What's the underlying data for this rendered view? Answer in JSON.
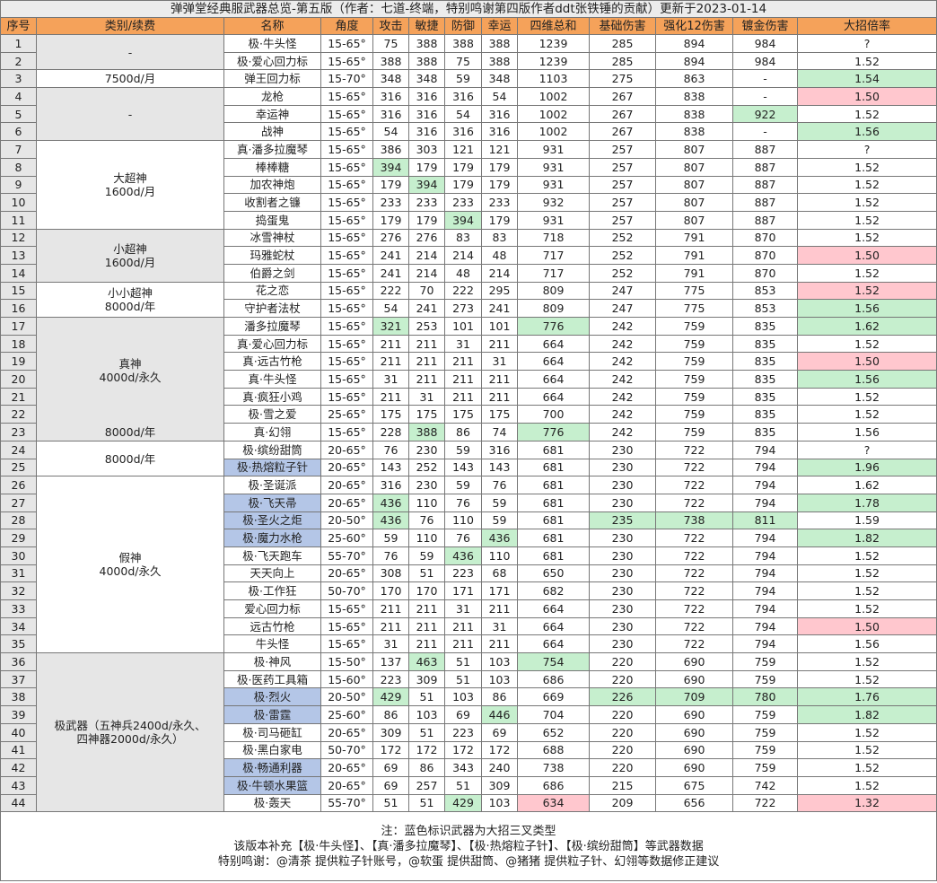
{
  "title": "弹弹堂经典服武器总览-第五版（作者：七道-终端，特别鸣谢第四版作者ddt张铁锤的贡献）更新于2023-01-14",
  "table": {
    "columns": [
      "序号",
      "类别/续费",
      "名称",
      "角度",
      "攻击",
      "敏捷",
      "防御",
      "幸运",
      "四维总和",
      "基础伤害",
      "强化12伤害",
      "镀金伤害",
      "大招倍率"
    ],
    "groups": [
      {
        "label": "-",
        "rows": [
          {
            "cells": [
              1,
              "极·牛头怪",
              "15-65°",
              75,
              388,
              388,
              388,
              1239,
              285,
              894,
              984,
              "?"
            ]
          },
          {
            "cells": [
              2,
              "极·爱心回力标",
              "15-65°",
              388,
              388,
              75,
              388,
              1239,
              285,
              894,
              984,
              "1.52"
            ]
          }
        ]
      },
      {
        "label": "7500d/月",
        "rows": [
          {
            "cells": [
              3,
              "弹王回力标",
              "15-70°",
              348,
              348,
              59,
              348,
              1103,
              275,
              863,
              "-",
              "1.54"
            ],
            "good": [
              11
            ]
          }
        ]
      },
      {
        "label": "-",
        "rows": [
          {
            "cells": [
              4,
              "龙枪",
              "15-65°",
              316,
              316,
              316,
              54,
              1002,
              267,
              838,
              "-",
              "1.50"
            ],
            "bad": [
              11
            ]
          },
          {
            "cells": [
              5,
              "幸运神",
              "15-65°",
              316,
              316,
              54,
              316,
              1002,
              267,
              838,
              922,
              "1.52"
            ],
            "good": [
              10
            ]
          },
          {
            "cells": [
              6,
              "战神",
              "15-65°",
              54,
              316,
              316,
              316,
              1002,
              267,
              838,
              "-",
              "1.56"
            ],
            "good": [
              11
            ]
          }
        ]
      },
      {
        "label": "大超神\n1600d/月",
        "rows": [
          {
            "cells": [
              7,
              "真·潘多拉魔琴",
              "15-65°",
              386,
              303,
              121,
              121,
              931,
              257,
              807,
              887,
              "?"
            ]
          },
          {
            "cells": [
              8,
              "棒棒糖",
              "15-65°",
              394,
              179,
              179,
              179,
              931,
              257,
              807,
              887,
              "1.52"
            ],
            "good": [
              3
            ]
          },
          {
            "cells": [
              9,
              "加农神炮",
              "15-65°",
              179,
              394,
              179,
              179,
              931,
              257,
              807,
              887,
              "1.52"
            ],
            "good": [
              4
            ]
          },
          {
            "cells": [
              10,
              "收割者之镰",
              "15-65°",
              233,
              233,
              233,
              233,
              932,
              257,
              807,
              887,
              "1.52"
            ]
          },
          {
            "cells": [
              11,
              "捣蛋鬼",
              "15-65°",
              179,
              179,
              394,
              179,
              931,
              257,
              807,
              887,
              "1.52"
            ],
            "good": [
              5
            ]
          }
        ]
      },
      {
        "label": "小超神\n1600d/月",
        "rows": [
          {
            "cells": [
              12,
              "冰雪神杖",
              "15-65°",
              276,
              276,
              83,
              83,
              718,
              252,
              791,
              870,
              "1.52"
            ]
          },
          {
            "cells": [
              13,
              "玛雅蛇杖",
              "15-65°",
              241,
              214,
              214,
              48,
              717,
              252,
              791,
              870,
              "1.50"
            ],
            "bad": [
              11
            ]
          },
          {
            "cells": [
              14,
              "伯爵之剑",
              "15-65°",
              241,
              214,
              48,
              214,
              717,
              252,
              791,
              870,
              "1.52"
            ]
          }
        ]
      },
      {
        "label": "小小超神\n8000d/年",
        "rows": [
          {
            "cells": [
              15,
              "花之恋",
              "15-65°",
              222,
              70,
              222,
              295,
              809,
              247,
              775,
              853,
              "1.52"
            ],
            "bad": [
              11
            ]
          },
          {
            "cells": [
              16,
              "守护者法杖",
              "15-65°",
              54,
              241,
              273,
              241,
              809,
              247,
              775,
              853,
              "1.56"
            ],
            "good": [
              11
            ]
          }
        ]
      },
      {
        "label": "真神\n4000d/永久",
        "rows": [
          {
            "cells": [
              17,
              "潘多拉魔琴",
              "15-65°",
              321,
              253,
              101,
              101,
              776,
              242,
              759,
              835,
              "1.62"
            ],
            "good": [
              3,
              7,
              11
            ]
          },
          {
            "cells": [
              18,
              "真·爱心回力标",
              "15-65°",
              211,
              211,
              31,
              211,
              664,
              242,
              759,
              835,
              "1.52"
            ]
          },
          {
            "cells": [
              19,
              "真·远古竹枪",
              "15-65°",
              211,
              211,
              211,
              31,
              664,
              242,
              759,
              835,
              "1.50"
            ],
            "bad": [
              11
            ]
          },
          {
            "cells": [
              20,
              "真·牛头怪",
              "15-65°",
              31,
              211,
              211,
              211,
              664,
              242,
              759,
              835,
              "1.56"
            ],
            "good": [
              11
            ]
          },
          {
            "cells": [
              21,
              "真·疯狂小鸡",
              "15-65°",
              211,
              31,
              211,
              211,
              664,
              242,
              759,
              835,
              "1.52"
            ]
          },
          {
            "cells": [
              22,
              "极·雪之爱",
              "25-65°",
              175,
              175,
              175,
              175,
              700,
              242,
              759,
              835,
              "1.52"
            ]
          }
        ]
      },
      {
        "label": "8000d/年",
        "rows": [
          {
            "cells": [
              23,
              "真·幻翎",
              "15-65°",
              228,
              388,
              86,
              74,
              776,
              242,
              759,
              835,
              "1.56"
            ],
            "good": [
              4,
              7
            ]
          }
        ]
      },
      {
        "label": "8000d/年",
        "rows": [
          {
            "cells": [
              24,
              "极·缤纷甜筒",
              "20-65°",
              76,
              230,
              59,
              316,
              681,
              230,
              722,
              794,
              "?"
            ]
          },
          {
            "cells": [
              25,
              "极·热熔粒子针",
              "20-65°",
              143,
              252,
              143,
              143,
              681,
              230,
              722,
              794,
              "1.96"
            ],
            "good": [
              11
            ],
            "trident": true
          }
        ]
      },
      {
        "label": "假神\n4000d/永久",
        "rows": [
          {
            "cells": [
              26,
              "极·圣诞派",
              "20-65°",
              316,
              230,
              59,
              76,
              681,
              230,
              722,
              794,
              "1.62"
            ]
          },
          {
            "cells": [
              27,
              "极·飞天帚",
              "20-65°",
              436,
              110,
              76,
              59,
              681,
              230,
              722,
              794,
              "1.78"
            ],
            "good": [
              3,
              11
            ],
            "trident": true
          },
          {
            "cells": [
              28,
              "极·圣火之炬",
              "20-50°",
              436,
              76,
              110,
              59,
              681,
              235,
              738,
              811,
              "1.59"
            ],
            "good": [
              3,
              8,
              9,
              10
            ],
            "trident": true
          },
          {
            "cells": [
              29,
              "极·魔力水枪",
              "25-60°",
              59,
              110,
              76,
              436,
              681,
              230,
              722,
              794,
              "1.82"
            ],
            "good": [
              6,
              11
            ],
            "trident": true
          },
          {
            "cells": [
              30,
              "极·飞天跑车",
              "55-70°",
              76,
              59,
              436,
              110,
              681,
              230,
              722,
              794,
              "1.52"
            ],
            "good": [
              5
            ]
          },
          {
            "cells": [
              31,
              "天天向上",
              "20-65°",
              308,
              51,
              223,
              68,
              650,
              230,
              722,
              794,
              "1.52"
            ]
          },
          {
            "cells": [
              32,
              "极·工作狂",
              "50-70°",
              170,
              170,
              171,
              171,
              682,
              230,
              722,
              794,
              "1.52"
            ]
          },
          {
            "cells": [
              33,
              "爱心回力标",
              "15-65°",
              211,
              211,
              31,
              211,
              664,
              230,
              722,
              794,
              "1.52"
            ]
          },
          {
            "cells": [
              34,
              "远古竹枪",
              "15-65°",
              211,
              211,
              211,
              31,
              664,
              230,
              722,
              794,
              "1.50"
            ],
            "bad": [
              11
            ]
          },
          {
            "cells": [
              35,
              "牛头怪",
              "15-65°",
              31,
              211,
              211,
              211,
              664,
              230,
              722,
              794,
              "1.56"
            ]
          }
        ]
      },
      {
        "label": "极武器（五神兵2400d/永久、\n四神器2000d/永久）",
        "rows": [
          {
            "cells": [
              36,
              "极·神风",
              "15-50°",
              137,
              463,
              51,
              103,
              754,
              220,
              690,
              759,
              "1.52"
            ],
            "good": [
              4,
              7
            ]
          },
          {
            "cells": [
              37,
              "极·医药工具箱",
              "15-60°",
              223,
              309,
              51,
              103,
              686,
              220,
              690,
              759,
              "1.52"
            ]
          },
          {
            "cells": [
              38,
              "极·烈火",
              "20-50°",
              429,
              51,
              103,
              86,
              669,
              226,
              709,
              780,
              "1.76"
            ],
            "good": [
              3,
              8,
              9,
              10,
              11
            ],
            "trident": true
          },
          {
            "cells": [
              39,
              "极·雷霆",
              "25-60°",
              86,
              103,
              69,
              446,
              704,
              220,
              690,
              759,
              "1.82"
            ],
            "good": [
              6,
              11
            ],
            "trident": true
          },
          {
            "cells": [
              40,
              "极·司马砸缸",
              "20-65°",
              309,
              51,
              223,
              69,
              652,
              220,
              690,
              759,
              "1.52"
            ]
          },
          {
            "cells": [
              41,
              "极·黑白家电",
              "50-70°",
              172,
              172,
              172,
              172,
              688,
              220,
              690,
              759,
              "1.52"
            ]
          },
          {
            "cells": [
              42,
              "极·畅通利器",
              "20-65°",
              69,
              86,
              343,
              240,
              738,
              220,
              690,
              759,
              "1.52"
            ],
            "trident": true
          },
          {
            "cells": [
              43,
              "极·牛顿水果篮",
              "20-65°",
              69,
              257,
              51,
              309,
              686,
              215,
              675,
              742,
              "1.52"
            ],
            "trident": true
          },
          {
            "cells": [
              44,
              "极·轰天",
              "55-70°",
              51,
              51,
              429,
              103,
              634,
              209,
              656,
              722,
              "1.32"
            ],
            "good": [
              5
            ],
            "bad": [
              7,
              11
            ]
          }
        ]
      }
    ]
  },
  "footer": [
    "注：蓝色标识武器为大招三叉类型",
    "该版本补充【极·牛头怪】、【真·潘多拉魔琴】、【极·热熔粒子针】、【极·缤纷甜筒】等武器数据",
    "特别鸣谢：@清茶 提供粒子针账号，@软蛋 提供甜筒、@猪猪 提供粒子针、幻翎等数据修正建议"
  ]
}
